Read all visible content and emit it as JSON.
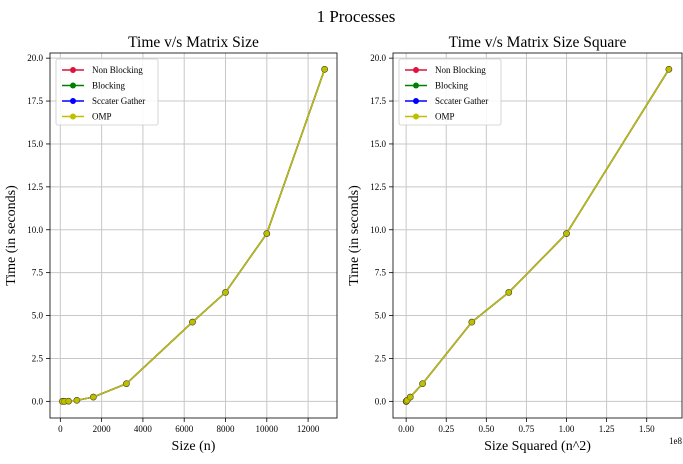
{
  "figure": {
    "suptitle": "1 Processes"
  },
  "legend_location": "upper-left",
  "grid": true,
  "series_styles": [
    {
      "name": "Non Blocking",
      "color": "#dc143c"
    },
    {
      "name": "Blocking",
      "color": "#008000"
    },
    {
      "name": "Sccater Gather",
      "color": "#0000ff"
    },
    {
      "name": "OMP",
      "color": "#bfbf00"
    }
  ],
  "chart_data": [
    {
      "type": "line",
      "title": "Time v/s Matrix Size",
      "xlabel": "Size (n)",
      "ylabel": "Time (in seconds)",
      "x_offset_label": "",
      "xlim": [
        -500,
        13400
      ],
      "ylim": [
        -0.97,
        20.3
      ],
      "xticks": [
        0,
        2000,
        4000,
        6000,
        8000,
        10000,
        12000
      ],
      "xtick_labels": [
        "0",
        "2000",
        "4000",
        "6000",
        "8000",
        "10000",
        "12000"
      ],
      "yticks": [
        0.0,
        2.5,
        5.0,
        7.5,
        10.0,
        12.5,
        15.0,
        17.5,
        20.0
      ],
      "ytick_labels": [
        "0.0",
        "2.5",
        "5.0",
        "7.5",
        "10.0",
        "12.5",
        "15.0",
        "17.5",
        "20.0"
      ],
      "x": [
        100,
        200,
        400,
        800,
        1600,
        3200,
        6400,
        8000,
        10000,
        12800
      ],
      "series": [
        {
          "name": "Non Blocking",
          "values": [
            0.0,
            0.0,
            0.01,
            0.06,
            0.25,
            1.03,
            4.62,
            6.35,
            9.78,
            19.35
          ]
        },
        {
          "name": "Blocking",
          "values": [
            0.0,
            0.0,
            0.01,
            0.06,
            0.25,
            1.03,
            4.62,
            6.35,
            9.78,
            19.35
          ]
        },
        {
          "name": "Sccater Gather",
          "values": [
            0.0,
            0.0,
            0.01,
            0.06,
            0.25,
            1.03,
            4.62,
            6.35,
            9.78,
            19.35
          ]
        },
        {
          "name": "OMP",
          "values": [
            0.0,
            0.0,
            0.01,
            0.06,
            0.25,
            1.03,
            4.62,
            6.35,
            9.78,
            19.35
          ]
        }
      ]
    },
    {
      "type": "line",
      "title": "Time v/s Matrix Size Square",
      "xlabel": "Size Squared (n^2)",
      "ylabel": "Time (in seconds)",
      "x_offset_label": "1e8",
      "xlim": [
        -0.082,
        1.72
      ],
      "ylim": [
        -0.97,
        20.3
      ],
      "xticks": [
        0.0,
        0.25,
        0.5,
        0.75,
        1.0,
        1.25,
        1.5
      ],
      "xtick_labels": [
        "0.00",
        "0.25",
        "0.50",
        "0.75",
        "1.00",
        "1.25",
        "1.50"
      ],
      "yticks": [
        0.0,
        2.5,
        5.0,
        7.5,
        10.0,
        12.5,
        15.0,
        17.5,
        20.0
      ],
      "ytick_labels": [
        "0.0",
        "2.5",
        "5.0",
        "7.5",
        "10.0",
        "12.5",
        "15.0",
        "17.5",
        "20.0"
      ],
      "x": [
        0.0001,
        0.0004,
        0.0016,
        0.0064,
        0.0256,
        0.1024,
        0.4096,
        0.64,
        1.0,
        1.6384
      ],
      "series": [
        {
          "name": "Non Blocking",
          "values": [
            0.0,
            0.0,
            0.01,
            0.06,
            0.25,
            1.03,
            4.62,
            6.35,
            9.78,
            19.35
          ]
        },
        {
          "name": "Blocking",
          "values": [
            0.0,
            0.0,
            0.01,
            0.06,
            0.25,
            1.03,
            4.62,
            6.35,
            9.78,
            19.35
          ]
        },
        {
          "name": "Sccater Gather",
          "values": [
            0.0,
            0.0,
            0.01,
            0.06,
            0.25,
            1.03,
            4.62,
            6.35,
            9.78,
            19.35
          ]
        },
        {
          "name": "OMP",
          "values": [
            0.0,
            0.0,
            0.01,
            0.06,
            0.25,
            1.03,
            4.62,
            6.35,
            9.78,
            19.35
          ]
        }
      ]
    }
  ]
}
